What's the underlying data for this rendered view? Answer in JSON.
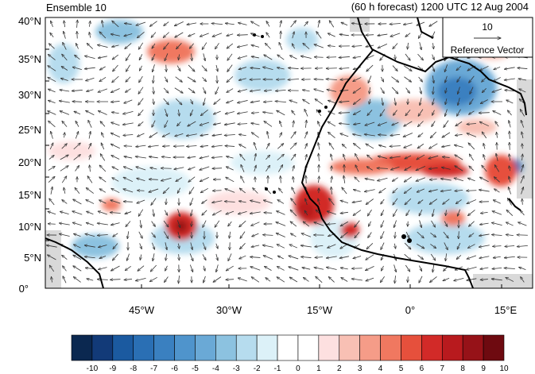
{
  "header": {
    "left_title": "Ensemble 10",
    "right_title": "(60 h forecast) 1200 UTC 12 Aug 2004"
  },
  "axes": {
    "y_ticks": [
      "40°N",
      "35°N",
      "30°N",
      "25°N",
      "20°N",
      "15°N",
      "10°N",
      "5°N",
      "0°"
    ],
    "x_ticks": [
      "45°W",
      "30°W",
      "15°W",
      "0°",
      "15°E"
    ]
  },
  "reference_vector": {
    "magnitude": "10",
    "label": "Reference Vector"
  },
  "colorbar": {
    "labels": [
      "-10",
      "-9",
      "-8",
      "-7",
      "-6",
      "-5",
      "-4",
      "-3",
      "-2",
      "-1",
      "0",
      "1",
      "2",
      "3",
      "4",
      "5",
      "6",
      "7",
      "8",
      "9",
      "10"
    ],
    "colors": [
      "#0b2850",
      "#123a78",
      "#1b5aa0",
      "#2a6fb4",
      "#3a80c0",
      "#4f94cc",
      "#6aa9d6",
      "#8cc2e0",
      "#b6dcee",
      "#dcf1f8",
      "#ffffff",
      "#ffffff",
      "#fde0e0",
      "#f8c0b4",
      "#f59c88",
      "#f07860",
      "#e6503c",
      "#d22a28",
      "#b81a1e",
      "#961218",
      "#6e0a10"
    ]
  },
  "colors": {
    "land": "#d9d9d9",
    "coast": "#000000",
    "vector": "#333333"
  },
  "icons": [
    "coastline-map",
    "wind-vector-arrows"
  ]
}
